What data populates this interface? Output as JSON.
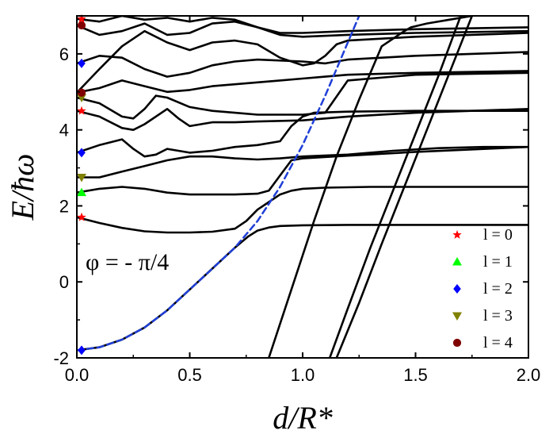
{
  "chart_data": {
    "type": "line",
    "title": "",
    "xlabel": "d/R*",
    "ylabel": "E/ħω",
    "xlim": [
      0,
      2.0
    ],
    "ylim": [
      -2,
      7
    ],
    "x_ticks": [
      0.0,
      0.5,
      1.0,
      1.5,
      2.0
    ],
    "x_tick_labels": [
      "0.0",
      "0.5",
      "1.0",
      "1.5",
      "2.0"
    ],
    "y_ticks": [
      -2,
      0,
      2,
      4,
      6
    ],
    "y_tick_labels": [
      "-2",
      "0",
      "2",
      "4",
      "6"
    ],
    "annotation": "φ = - π/4",
    "grid": false,
    "legend_position": "bottom-right",
    "legend": [
      {
        "label": "l = 0",
        "marker": "star",
        "color": "#ff0000"
      },
      {
        "label": "l = 1",
        "marker": "triangle-up",
        "color": "#00ff00"
      },
      {
        "label": "l = 2",
        "marker": "diamond",
        "color": "#0000ff"
      },
      {
        "label": "l = 3",
        "marker": "triangle-down",
        "color": "#808000"
      },
      {
        "label": "l = 4",
        "marker": "circle",
        "color": "#800000"
      }
    ],
    "markers_at_x0": [
      {
        "y": -1.8,
        "l": 2
      },
      {
        "y": 1.7,
        "l": 0
      },
      {
        "y": 2.35,
        "l": 1
      },
      {
        "y": 2.75,
        "l": 3
      },
      {
        "y": 3.4,
        "l": 2
      },
      {
        "y": 4.5,
        "l": 0
      },
      {
        "y": 4.85,
        "l": 3
      },
      {
        "y": 4.98,
        "l": 4
      },
      {
        "y": 5.75,
        "l": 2
      },
      {
        "y": 6.75,
        "l": 4
      },
      {
        "y": 6.92,
        "l": 0
      }
    ],
    "series": [
      {
        "style": "black",
        "x": [
          0,
          0.1,
          0.2,
          0.3,
          0.4,
          0.5,
          0.6,
          0.7,
          0.72,
          0.76,
          0.8,
          0.85,
          0.9,
          1.0,
          1.2,
          1.5,
          2.0
        ],
        "y": [
          -1.8,
          -1.72,
          -1.52,
          -1.2,
          -0.75,
          -0.2,
          0.35,
          0.9,
          1.0,
          1.2,
          1.35,
          1.43,
          1.47,
          1.49,
          1.5,
          1.5,
          1.5
        ]
      },
      {
        "style": "black",
        "x": [
          0,
          0.1,
          0.2,
          0.3,
          0.4,
          0.5,
          0.6,
          0.7,
          0.75,
          0.8,
          0.9,
          0.95,
          1.0,
          1.1,
          1.3,
          1.5,
          2.0
        ],
        "y": [
          1.7,
          1.55,
          1.42,
          1.33,
          1.3,
          1.3,
          1.32,
          1.4,
          1.6,
          1.9,
          2.3,
          2.4,
          2.45,
          2.48,
          2.5,
          2.5,
          2.5
        ]
      },
      {
        "style": "black",
        "x": [
          0,
          0.1,
          0.2,
          0.3,
          0.4,
          0.5,
          0.6,
          0.7,
          0.8,
          0.85,
          0.9,
          0.95,
          1.0,
          1.2,
          1.5,
          2.0
        ],
        "y": [
          2.35,
          2.45,
          2.5,
          2.45,
          2.35,
          2.3,
          2.3,
          2.3,
          2.32,
          2.4,
          2.8,
          3.2,
          3.25,
          3.32,
          3.42,
          3.55
        ]
      },
      {
        "style": "black",
        "x": [
          0,
          0.1,
          0.2,
          0.3,
          0.4,
          0.5,
          0.6,
          0.7,
          0.8,
          0.9,
          1.0,
          1.2,
          1.4,
          1.6,
          1.8,
          2.0
        ],
        "y": [
          2.75,
          2.75,
          2.9,
          3.05,
          3.2,
          3.3,
          3.3,
          3.25,
          3.22,
          3.25,
          3.3,
          3.35,
          3.45,
          3.52,
          3.55,
          3.55
        ]
      },
      {
        "style": "black",
        "x": [
          0,
          0.1,
          0.2,
          0.25,
          0.3,
          0.35,
          0.4,
          0.5,
          0.6,
          0.7,
          0.8,
          0.9,
          0.95,
          1.0,
          1.05,
          1.2,
          1.5,
          2.0
        ],
        "y": [
          3.4,
          3.6,
          3.75,
          3.5,
          3.3,
          3.35,
          3.5,
          3.4,
          3.45,
          3.55,
          3.6,
          3.7,
          4.1,
          4.35,
          4.45,
          4.48,
          4.5,
          4.5
        ]
      },
      {
        "style": "black",
        "x": [
          0,
          0.1,
          0.2,
          0.25,
          0.3,
          0.4,
          0.45,
          0.5,
          0.6,
          0.7,
          0.8,
          1.0,
          1.2,
          1.5,
          2.0
        ],
        "y": [
          4.5,
          4.35,
          4.05,
          4.0,
          4.15,
          4.55,
          4.3,
          4.1,
          4.2,
          4.2,
          4.22,
          4.25,
          4.35,
          4.45,
          4.55
        ]
      },
      {
        "style": "black",
        "x": [
          0,
          0.1,
          0.2,
          0.25,
          0.3,
          0.35,
          0.4,
          0.5,
          0.6,
          0.7,
          0.8,
          0.9,
          1.0,
          1.1,
          1.2,
          1.5,
          2.0
        ],
        "y": [
          4.85,
          4.7,
          4.35,
          4.3,
          4.55,
          4.9,
          4.85,
          4.6,
          4.5,
          4.45,
          4.4,
          4.4,
          4.4,
          4.45,
          5.3,
          5.45,
          5.5
        ]
      },
      {
        "style": "black",
        "x": [
          0,
          0.1,
          0.2,
          0.3,
          0.4,
          0.5,
          0.6,
          0.7,
          0.8,
          0.9,
          1.0,
          1.1,
          1.2,
          1.5,
          2.0
        ],
        "y": [
          4.98,
          5.1,
          5.3,
          5.15,
          5.0,
          5.05,
          5.15,
          5.2,
          5.25,
          5.3,
          5.35,
          5.4,
          5.45,
          5.5,
          5.55
        ]
      },
      {
        "style": "black",
        "x": [
          0,
          0.1,
          0.2,
          0.3,
          0.4,
          0.5,
          0.6,
          0.7,
          0.8,
          1.0,
          1.1,
          1.2,
          1.5,
          2.0
        ],
        "y": [
          5.75,
          5.95,
          5.9,
          5.6,
          5.4,
          5.5,
          5.7,
          5.8,
          5.85,
          5.8,
          5.75,
          5.85,
          5.95,
          6.05
        ]
      },
      {
        "style": "black",
        "x": [
          0,
          0.1,
          0.2,
          0.3,
          0.4,
          0.5,
          0.6,
          0.7,
          0.8,
          0.9,
          1.0,
          1.05,
          1.1,
          1.15,
          1.2,
          1.5,
          2.0
        ],
        "y": [
          4.98,
          5.6,
          6.2,
          6.6,
          6.3,
          6.1,
          6.3,
          6.35,
          6.25,
          5.9,
          5.7,
          5.75,
          5.95,
          6.25,
          6.35,
          6.45,
          6.55
        ]
      },
      {
        "style": "black",
        "x": [
          0,
          0.1,
          0.2,
          0.3,
          0.4,
          0.5,
          0.6,
          0.7,
          0.8,
          0.9,
          1.0,
          1.2,
          1.5,
          2.0
        ],
        "y": [
          6.75,
          6.5,
          6.6,
          6.8,
          6.5,
          6.55,
          6.8,
          6.85,
          6.7,
          6.5,
          6.45,
          6.5,
          6.55,
          6.6
        ]
      },
      {
        "style": "black",
        "x": [
          0,
          0.1,
          0.2,
          0.3,
          0.4,
          0.5,
          0.6,
          0.7,
          0.8,
          0.9,
          1.0,
          1.2,
          1.5,
          2.0
        ],
        "y": [
          6.92,
          6.85,
          7.0,
          6.9,
          6.95,
          6.85,
          6.95,
          6.9,
          6.7,
          6.55,
          6.55,
          6.6,
          6.65,
          6.7
        ]
      },
      {
        "style": "black",
        "x": [
          0.85,
          0.95,
          1.05,
          1.15,
          1.25,
          1.35,
          1.45,
          1.48,
          1.55,
          1.65,
          1.75
        ],
        "y": [
          -2.0,
          -0.2,
          1.6,
          3.3,
          4.8,
          6.2,
          6.6,
          6.7,
          6.8,
          6.9,
          7.0
        ]
      },
      {
        "style": "black",
        "x": [
          1.12,
          1.2,
          1.3,
          1.4,
          1.5,
          1.6,
          1.7
        ],
        "y": [
          -2.0,
          -0.7,
          0.9,
          2.4,
          3.9,
          5.4,
          7.0
        ]
      },
      {
        "style": "black",
        "x": [
          1.15,
          1.25,
          1.35,
          1.45,
          1.55,
          1.65,
          1.75
        ],
        "y": [
          -2.0,
          -0.55,
          1.0,
          2.5,
          4.0,
          5.5,
          7.0
        ]
      },
      {
        "style": "blue-dashed",
        "x": [
          0,
          0.1,
          0.2,
          0.3,
          0.4,
          0.5,
          0.6,
          0.7,
          0.8,
          0.9,
          1.0,
          1.1,
          1.2,
          1.25
        ],
        "y": [
          -1.8,
          -1.72,
          -1.52,
          -1.2,
          -0.75,
          -0.2,
          0.35,
          0.9,
          1.6,
          2.5,
          3.6,
          4.9,
          6.3,
          7.0
        ]
      }
    ]
  }
}
